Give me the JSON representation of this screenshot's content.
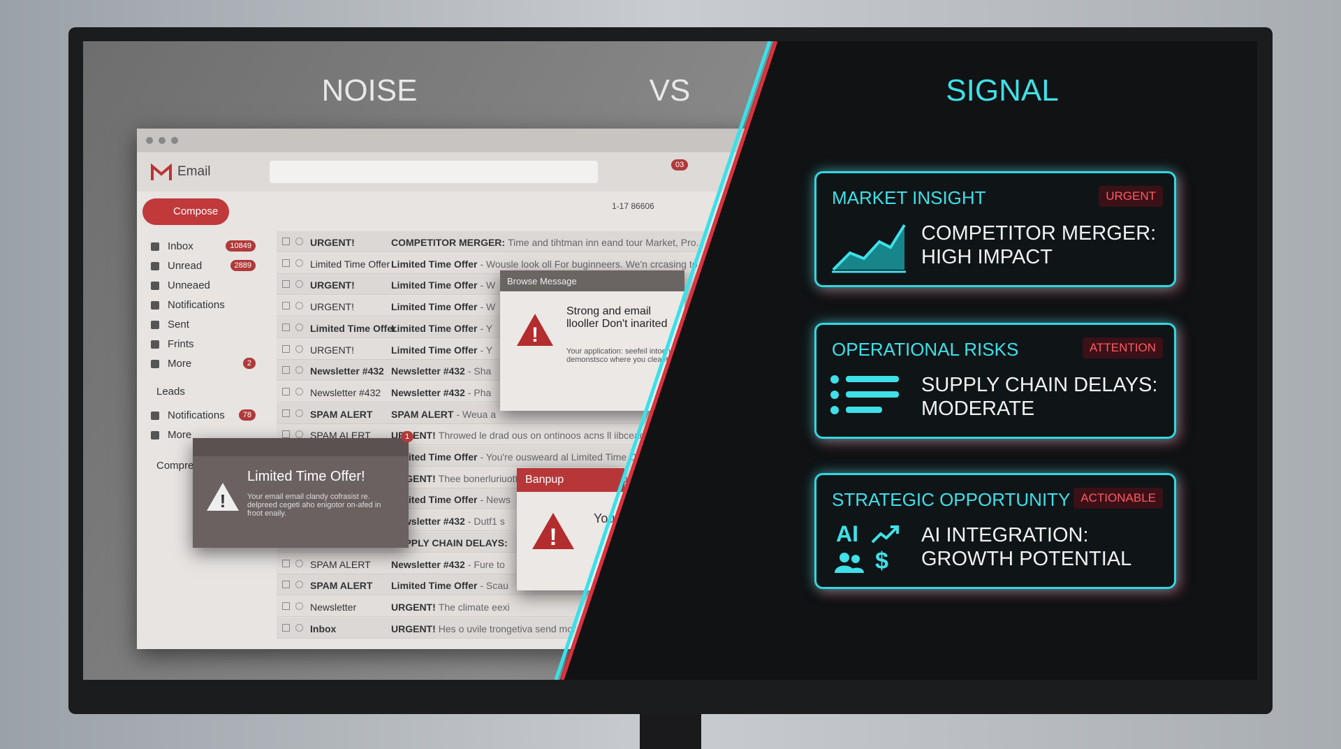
{
  "header": {
    "noise": "NOISE",
    "vs": "VS",
    "signal": "SIGNAL"
  },
  "email": {
    "app": "Email",
    "compose": "Compose",
    "notification_count": "03",
    "pagination": "1-17 86606",
    "sidebar": [
      {
        "label": "Inbox",
        "count": "10849"
      },
      {
        "label": "Unread",
        "count": "2889"
      },
      {
        "label": "Unneaed"
      },
      {
        "label": "Notifications"
      },
      {
        "label": "Sent"
      },
      {
        "label": "Frints"
      },
      {
        "label": "More",
        "count": "2"
      }
    ],
    "leads_heading": "Leads",
    "leads": [
      {
        "label": "Notifications",
        "count": "78"
      },
      {
        "label": "More"
      }
    ],
    "compre": "Compre",
    "rows": [
      {
        "sender": "URGENT!",
        "subject": "COMPETITOR MERGER:",
        "snippet": "Time and tihtman inn eand tour Market, Pro..."
      },
      {
        "sender": "Limited Time Offer",
        "subject": "Limited Time Offer",
        "snippet": "- Wousle look oll For buginneers. We'n crcasing to..."
      },
      {
        "sender": "URGENT!",
        "subject": "Limited Time Offer",
        "snippet": "- W"
      },
      {
        "sender": "URGENT!",
        "subject": "Limited Time Offer",
        "snippet": "- W"
      },
      {
        "sender": "Limited Time Offer",
        "subject": "Limited Time Offer",
        "snippet": "- Y"
      },
      {
        "sender": "URGENT!",
        "subject": "Limited Time Offer",
        "snippet": "- Y"
      },
      {
        "sender": "Newsletter #432",
        "subject": "Newsletter #432",
        "snippet": "- Sha"
      },
      {
        "sender": "Newsletter #432",
        "subject": "Newsletter #432",
        "snippet": "- Pha"
      },
      {
        "sender": "SPAM ALERT",
        "subject": "SPAM ALERT",
        "snippet": "- Weua a"
      },
      {
        "sender": "SPAM ALERT",
        "subject": "URGENT!",
        "snippet": "Throwed le drad ous on ontinoos acns ll iibceadauu"
      },
      {
        "subject": "Limited Time Offer",
        "snippet": "- You're ousweard al Limited Time Offer"
      },
      {
        "subject": "URGENT!",
        "snippet": "Thee bonerluriuott dready auward now geto. He"
      },
      {
        "subject": "Limited Time Offer",
        "snippet": "- News"
      },
      {
        "subject": "Newsletter #432",
        "snippet": "- Dutf1 s"
      },
      {
        "subject": "SUPPLY CHAIN DELAYS:"
      },
      {
        "sender": "SPAM ALERT",
        "subject": "Newsletter #432",
        "snippet": "- Fure to"
      },
      {
        "sender": "SPAM ALERT",
        "subject": "Limited Time Offer",
        "snippet": "- Scau"
      },
      {
        "sender": "Newsletter",
        "subject": "URGENT!",
        "snippet": "The climate eexi"
      },
      {
        "sender": "Inbox",
        "subject": "URGENT!",
        "snippet": "Hes o uvile trongetiva send mor"
      }
    ]
  },
  "popups": {
    "browse": {
      "title": "Browse Message",
      "heading": "Strong and email llooller Don't inarited",
      "body": "Your application: seefeil intoen demonstsco where you cleaets"
    },
    "offer": {
      "badge": "1",
      "title": "Limited Time Offer!",
      "body": "Your email email clandy cofrasist re. delpreed cegeti aho enigotor on-afed in froot enaily."
    },
    "banpup": {
      "title": "Banpup",
      "body": "You"
    }
  },
  "cards": [
    {
      "title": "MARKET INSIGHT",
      "tag": "URGENT",
      "lines": [
        "COMPETITOR MERGER:",
        "HIGH IMPACT"
      ]
    },
    {
      "title": "OPERATIONAL RISKS",
      "tag": "ATTENTION",
      "lines": [
        "SUPPLY CHAIN DELAYS:",
        "MODERATE"
      ]
    },
    {
      "title": "STRATEGIC OPPORTUNITY",
      "tag": "ACTIONABLE",
      "lines": [
        "AI INTEGRATION:",
        "GROWTH POTENTIAL"
      ],
      "icon_text": [
        "AI",
        "$"
      ]
    }
  ]
}
